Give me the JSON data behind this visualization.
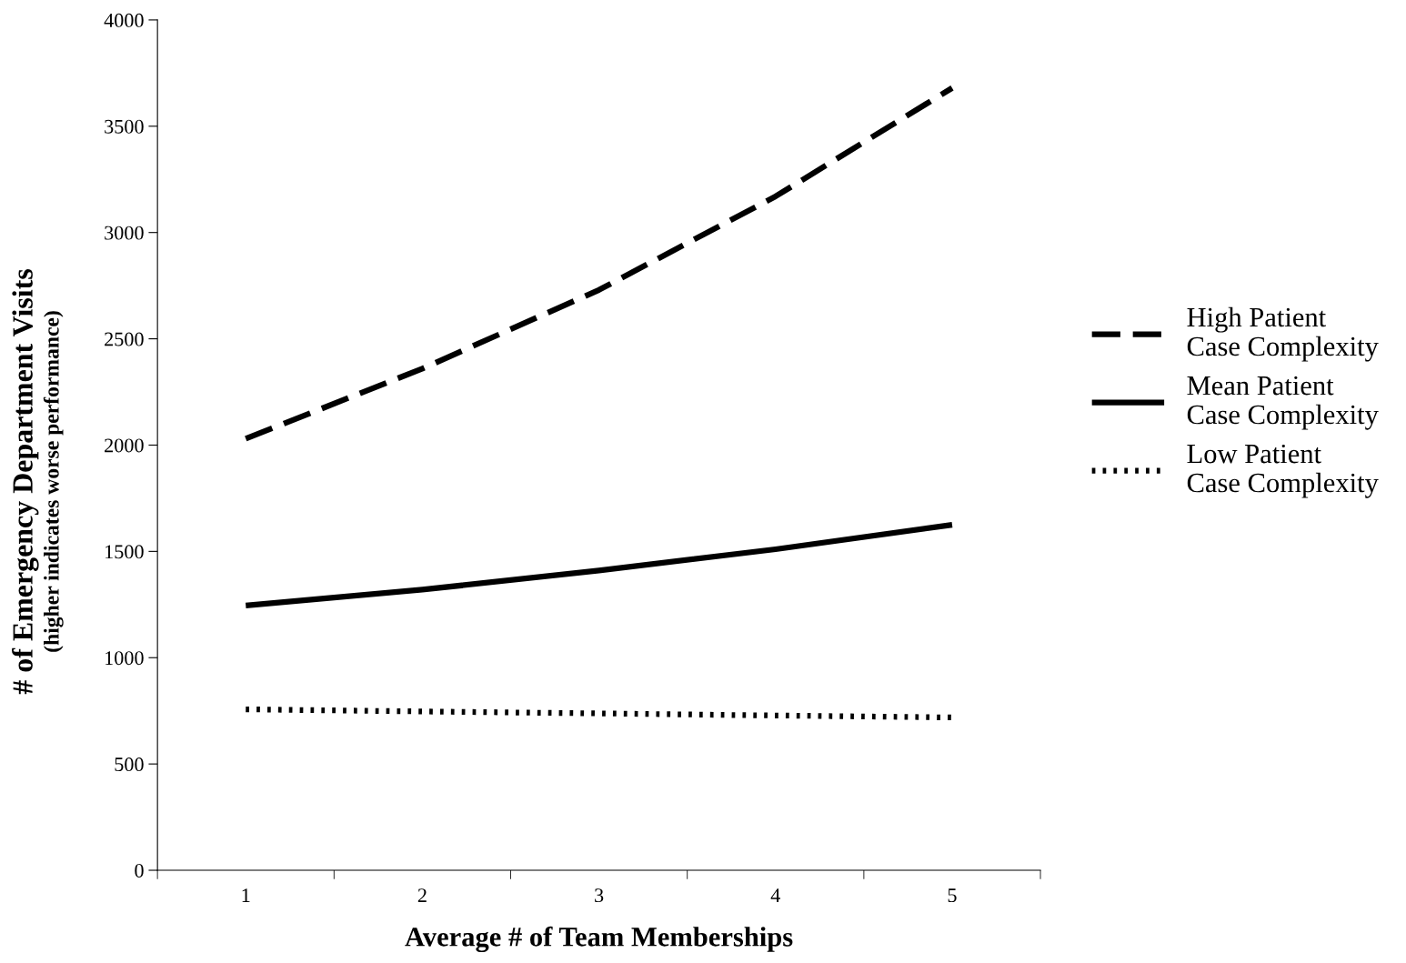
{
  "chart_data": {
    "type": "line",
    "xlabel": "Average # of Team Memberships",
    "ylabel": "# of Emergency Department Visits\n(higher indicates worse performance)",
    "categories": [
      "1",
      "2",
      "3",
      "4",
      "5"
    ],
    "series": [
      {
        "name": "High Patient\nCase Complexity",
        "color": "#000000",
        "line_style": "dashed",
        "values": [
          2030,
          2360,
          2730,
          3170,
          3680
        ]
      },
      {
        "name": "Mean Patient\nCase Complexity",
        "color": "#000000",
        "line_style": "solid",
        "values": [
          1245,
          1320,
          1410,
          1510,
          1625
        ]
      },
      {
        "name": "Low Patient\nCase Complexity",
        "color": "#000000",
        "line_style": "dotted",
        "values": [
          757,
          747,
          738,
          728,
          719
        ]
      }
    ],
    "ylim": [
      0,
      4000
    ],
    "yticks": [
      0,
      500,
      1000,
      1500,
      2000,
      2500,
      3000,
      3500,
      4000
    ],
    "grid": false,
    "legend": "right",
    "marker": "none"
  }
}
